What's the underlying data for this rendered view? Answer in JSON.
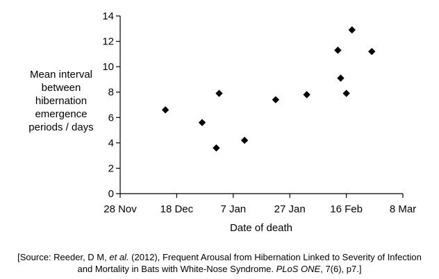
{
  "chart_data": {
    "type": "scatter",
    "ylabel_lines": [
      "Mean interval",
      "between",
      "hibernation",
      "emergence",
      "periods / days"
    ],
    "xlabel": "Date of death",
    "ylim": [
      0,
      14
    ],
    "y_ticks": [
      0,
      2,
      4,
      6,
      8,
      10,
      12,
      14
    ],
    "x_ticks": [
      {
        "date": "2008-11-28",
        "label": "28 Nov"
      },
      {
        "date": "2008-12-18",
        "label": "18 Dec"
      },
      {
        "date": "2009-01-07",
        "label": "7 Jan"
      },
      {
        "date": "2009-01-27",
        "label": "27 Jan"
      },
      {
        "date": "2009-02-16",
        "label": "16 Feb"
      },
      {
        "date": "2009-03-08",
        "label": "8 Mar"
      }
    ],
    "xlim": [
      "2008-11-28",
      "2009-03-08"
    ],
    "marker": "diamond",
    "marker_color": "#000000",
    "grid": false,
    "points": [
      {
        "x": "2008-12-14",
        "y": 6.6
      },
      {
        "x": "2008-12-27",
        "y": 5.6
      },
      {
        "x": "2009-01-01",
        "y": 3.6
      },
      {
        "x": "2009-01-02",
        "y": 7.9
      },
      {
        "x": "2009-01-11",
        "y": 4.2
      },
      {
        "x": "2009-01-22",
        "y": 7.4
      },
      {
        "x": "2009-02-02",
        "y": 7.8
      },
      {
        "x": "2009-02-13",
        "y": 11.3
      },
      {
        "x": "2009-02-14",
        "y": 9.1
      },
      {
        "x": "2009-02-16",
        "y": 7.9
      },
      {
        "x": "2009-02-18",
        "y": 12.9
      },
      {
        "x": "2009-02-25",
        "y": 11.2
      }
    ]
  },
  "source": {
    "line1_prefix": "[Source: Reeder, D M, ",
    "line1_italic": "et al.",
    "line1_suffix": " (2012), Frequent Arousal from Hibernation Linked to Severity of Infection",
    "line2_prefix": "and Mortality in Bats with White-Nose Syndrome. ",
    "line2_italic": "PLoS ONE",
    "line2_suffix": ", 7(6), p7.]"
  }
}
